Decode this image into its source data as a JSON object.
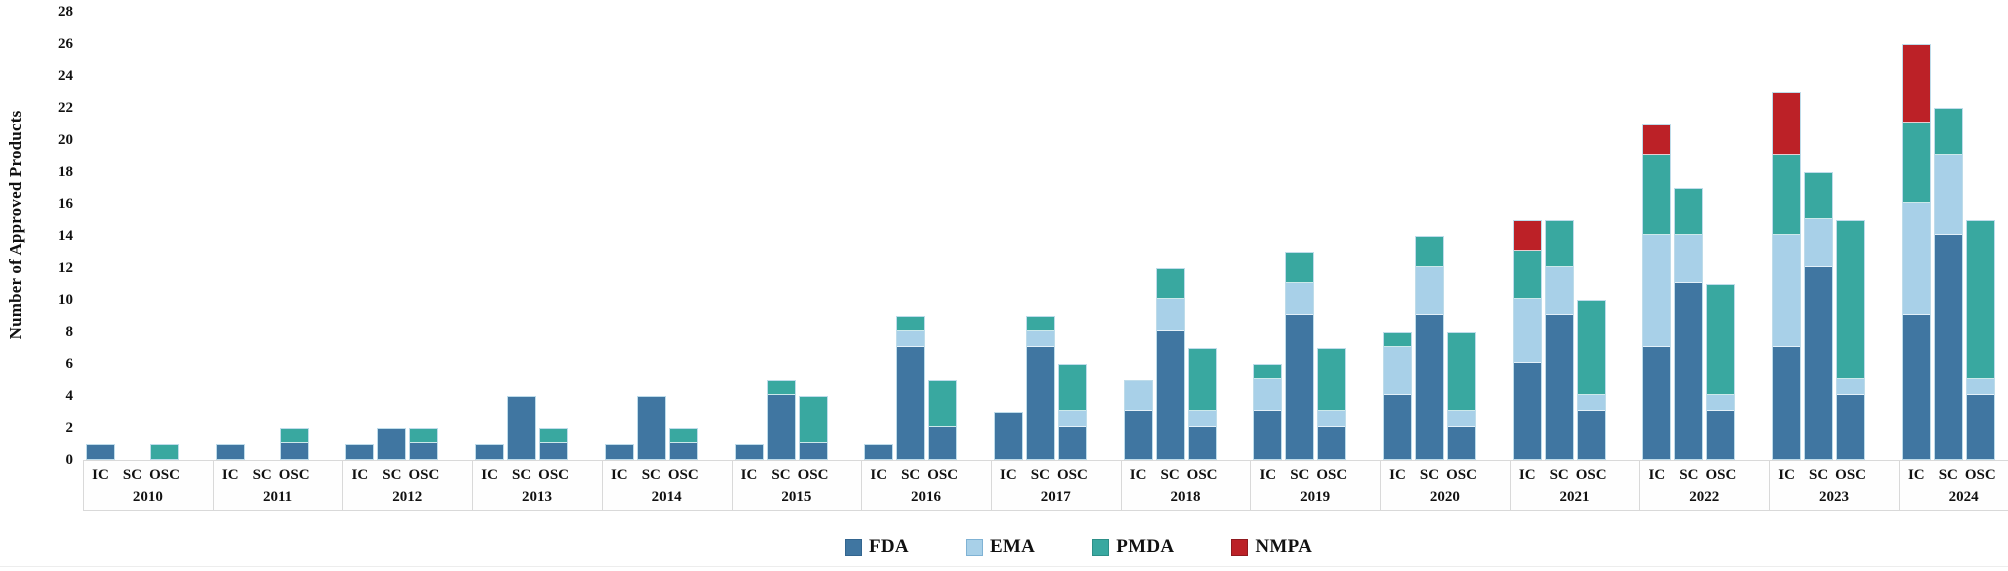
{
  "y_axis": {
    "label": "Number of Approved Products",
    "min": 0,
    "max": 28,
    "step": 2
  },
  "legend": [
    {
      "name": "FDA",
      "color": "#4076A1",
      "border": "#33658f"
    },
    {
      "name": "EMA",
      "color": "#A8D0E8",
      "border": "#7fb2d4"
    },
    {
      "name": "PMDA",
      "color": "#39A8A0",
      "border": "#2d8f88"
    },
    {
      "name": "NMPA",
      "color": "#BC2127",
      "border": "#8f1a1f"
    }
  ],
  "chart_data": {
    "type": "bar",
    "stacked": true,
    "title": "",
    "xlabel": "",
    "ylabel": "Number of Approved Products",
    "ylim": [
      0,
      28
    ],
    "ytick_step": 2,
    "grid": false,
    "legend_position": "bottom",
    "subcategories": [
      "IC",
      "SC",
      "OSC"
    ],
    "series_order": [
      "FDA",
      "EMA",
      "PMDA",
      "NMPA"
    ],
    "colors": {
      "FDA": "#4076A1",
      "EMA": "#A8D0E8",
      "PMDA": "#39A8A0",
      "NMPA": "#BC2127"
    },
    "years": [
      {
        "year": "2010",
        "IC": [
          1,
          0,
          0,
          0
        ],
        "SC": [
          0,
          0,
          0,
          0
        ],
        "OSC": [
          0,
          0,
          1,
          0
        ]
      },
      {
        "year": "2011",
        "IC": [
          1,
          0,
          0,
          0
        ],
        "SC": [
          0,
          0,
          0,
          0
        ],
        "OSC": [
          1,
          0,
          1,
          0
        ]
      },
      {
        "year": "2012",
        "IC": [
          1,
          0,
          0,
          0
        ],
        "SC": [
          2,
          0,
          0,
          0
        ],
        "OSC": [
          1,
          0,
          1,
          0
        ]
      },
      {
        "year": "2013",
        "IC": [
          1,
          0,
          0,
          0
        ],
        "SC": [
          4,
          0,
          0,
          0
        ],
        "OSC": [
          1,
          0,
          1,
          0
        ]
      },
      {
        "year": "2014",
        "IC": [
          1,
          0,
          0,
          0
        ],
        "SC": [
          4,
          0,
          0,
          0
        ],
        "OSC": [
          1,
          0,
          1,
          0
        ]
      },
      {
        "year": "2015",
        "IC": [
          1,
          0,
          0,
          0
        ],
        "SC": [
          4,
          0,
          1,
          0
        ],
        "OSC": [
          1,
          0,
          3,
          0
        ]
      },
      {
        "year": "2016",
        "IC": [
          1,
          0,
          0,
          0
        ],
        "SC": [
          7,
          1,
          1,
          0
        ],
        "OSC": [
          2,
          0,
          3,
          0
        ]
      },
      {
        "year": "2017",
        "IC": [
          3,
          0,
          0,
          0
        ],
        "SC": [
          7,
          1,
          1,
          0
        ],
        "OSC": [
          2,
          1,
          3,
          0
        ]
      },
      {
        "year": "2018",
        "IC": [
          3,
          2,
          0,
          0
        ],
        "SC": [
          8,
          2,
          2,
          0
        ],
        "OSC": [
          2,
          1,
          4,
          0
        ]
      },
      {
        "year": "2019",
        "IC": [
          3,
          2,
          1,
          0
        ],
        "SC": [
          9,
          2,
          2,
          0
        ],
        "OSC": [
          2,
          1,
          4,
          0
        ]
      },
      {
        "year": "2020",
        "IC": [
          4,
          3,
          1,
          0
        ],
        "SC": [
          9,
          3,
          2,
          0
        ],
        "OSC": [
          2,
          1,
          5,
          0
        ]
      },
      {
        "year": "2021",
        "IC": [
          6,
          4,
          3,
          2
        ],
        "SC": [
          9,
          3,
          3,
          0
        ],
        "OSC": [
          3,
          1,
          6,
          0
        ]
      },
      {
        "year": "2022",
        "IC": [
          7,
          7,
          5,
          2
        ],
        "SC": [
          11,
          3,
          3,
          0
        ],
        "OSC": [
          3,
          1,
          7,
          0
        ]
      },
      {
        "year": "2023",
        "IC": [
          7,
          7,
          5,
          4
        ],
        "SC": [
          12,
          3,
          3,
          0
        ],
        "OSC": [
          4,
          1,
          10,
          0
        ]
      },
      {
        "year": "2024",
        "IC": [
          9,
          7,
          5,
          5
        ],
        "SC": [
          14,
          5,
          3,
          0
        ],
        "OSC": [
          4,
          1,
          10,
          0
        ]
      }
    ]
  }
}
